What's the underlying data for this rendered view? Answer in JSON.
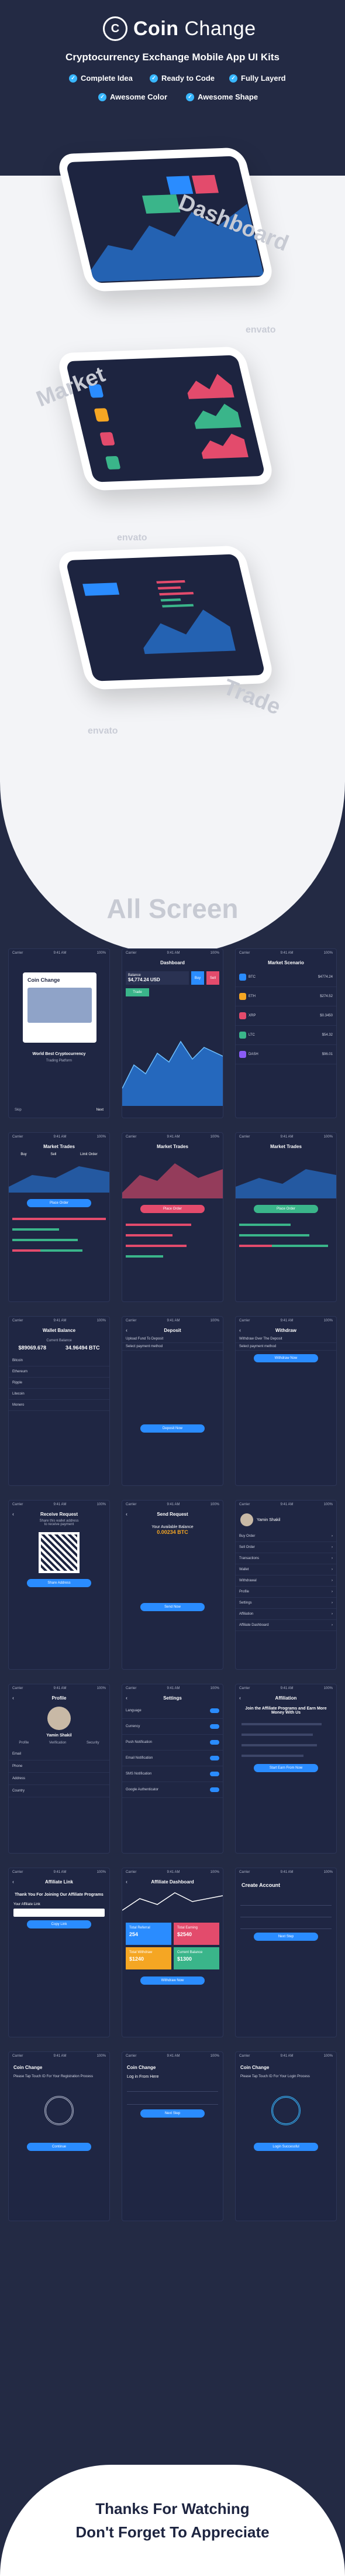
{
  "brand": {
    "logo_letter": "C",
    "name_bold": "Coin",
    "name_light": "Change",
    "tagline": "Cryptocurrency Exchange Mobile App UI Kits"
  },
  "features": [
    "Complete Idea",
    "Ready to Code",
    "Fully Layerd",
    "Awesome Color",
    "Awesome Shape"
  ],
  "hero_labels": {
    "dashboard": "Dashboard",
    "market": "Market",
    "trade": "Trade"
  },
  "watermark": "envato",
  "all_screen_title": "All Screen",
  "status": {
    "carrier": "Carrier",
    "time": "9:41 AM",
    "battery": "100%"
  },
  "screens": {
    "splash": {
      "brand": "Coin Change",
      "headline": "World Best Cryptocurrency",
      "sub": "Trading Platform",
      "skip": "Skip",
      "next": "Next"
    },
    "dashboard": {
      "title": "Dashboard",
      "balance_label": "Balance",
      "balance_value": "$4,774.24 USD",
      "buy": "Buy",
      "sell": "Sell",
      "trade": "Trade"
    },
    "market_scenario": {
      "title": "Market Scenario",
      "coins": [
        {
          "sym": "BTC",
          "price": "$4774.24",
          "color": "#2a8cff"
        },
        {
          "sym": "ETH",
          "price": "$274.52",
          "color": "#f5a623"
        },
        {
          "sym": "XRP",
          "price": "$0.3450",
          "color": "#e34b6c"
        },
        {
          "sym": "LTC",
          "price": "$54.32",
          "color": "#3ab58a"
        },
        {
          "sym": "DASH",
          "price": "$96.01",
          "color": "#8a5cf6"
        }
      ]
    },
    "market_trades": {
      "title": "Market Trades",
      "tabs": [
        "Buy",
        "Sell",
        "Limit Order"
      ],
      "action": "Place Order"
    },
    "wallet": {
      "title": "Wallet Balance",
      "current_label": "Current Balance",
      "usd": "$89069.678",
      "btc": "34.96494 BTC",
      "rows": [
        "Bitcoin",
        "Ethereum",
        "Ripple",
        "Litecoin",
        "Monero"
      ]
    },
    "deposit": {
      "title": "Deposit",
      "line1": "Upload Fund To Deposit",
      "line2": "Select payment method",
      "button": "Deposit Now"
    },
    "withdraw": {
      "title": "Withdraw",
      "line1": "Withdraw Over The Deposit",
      "line2": "Select payment method",
      "button": "Withdraw Now"
    },
    "receive": {
      "title": "Receive Request",
      "line1": "Share this wallet address",
      "line2": "to receive payment",
      "button": "Share Address"
    },
    "send": {
      "title": "Send Request",
      "avail": "Your Available Balance",
      "amount": "0.00234 BTC",
      "button": "Send Now"
    },
    "menu": {
      "name": "Yamin Shakil",
      "items": [
        "Buy Order",
        "Sell Order",
        "Transactions",
        "Wallet",
        "Withdrawal",
        "Profile",
        "Settings",
        "Affiliation",
        "Affiliate Dashboard"
      ]
    },
    "profile": {
      "title": "Profile",
      "name": "Yamin Shakil",
      "tabs": [
        "Profile",
        "Verification",
        "Security"
      ],
      "fields": [
        "Email",
        "Phone",
        "Address",
        "Country"
      ]
    },
    "settings": {
      "title": "Settings",
      "items": [
        "Language",
        "Currency",
        "Push Notification",
        "Email Notification",
        "SMS Notification",
        "Google Authenticator"
      ]
    },
    "affiliation": {
      "title": "Affiliation",
      "headline": "Join the Affiliate Programs and Earn More Money With Us",
      "button": "Start Earn From Now"
    },
    "affiliate_link": {
      "title": "Affiliate Link",
      "headline": "Thank You For Joining Our Affiliate Programs",
      "label": "Your Affiliate Link",
      "button": "Copy Link"
    },
    "affiliate_dashboard": {
      "title": "Affiliate Dashboard",
      "tiles": [
        {
          "label": "Total Referral",
          "value": "254",
          "color": "#2a8cff"
        },
        {
          "label": "Total Earning",
          "value": "$2540",
          "color": "#e34b6c"
        },
        {
          "label": "Total Withdraw",
          "value": "$1240",
          "color": "#f5a623"
        },
        {
          "label": "Current Balance",
          "value": "$1300",
          "color": "#3ab58a"
        }
      ],
      "button": "Withdraw Now"
    },
    "signup": {
      "title": "Create Account",
      "button": "Next Step"
    },
    "fingerprint_register": {
      "brand": "Coin Change",
      "line": "Please Tap Touch ID For Your Registration Process",
      "button": "Continue"
    },
    "login": {
      "brand": "Coin Change",
      "title": "Log in From Here",
      "button": "Next Step"
    },
    "fingerprint_login": {
      "brand": "Coin Change",
      "line": "Please Tap Touch ID For Your Login Process",
      "button": "Login Successful"
    }
  },
  "footer": {
    "line1": "Thanks For Watching",
    "line2": "Don't Forget To Appreciate"
  }
}
